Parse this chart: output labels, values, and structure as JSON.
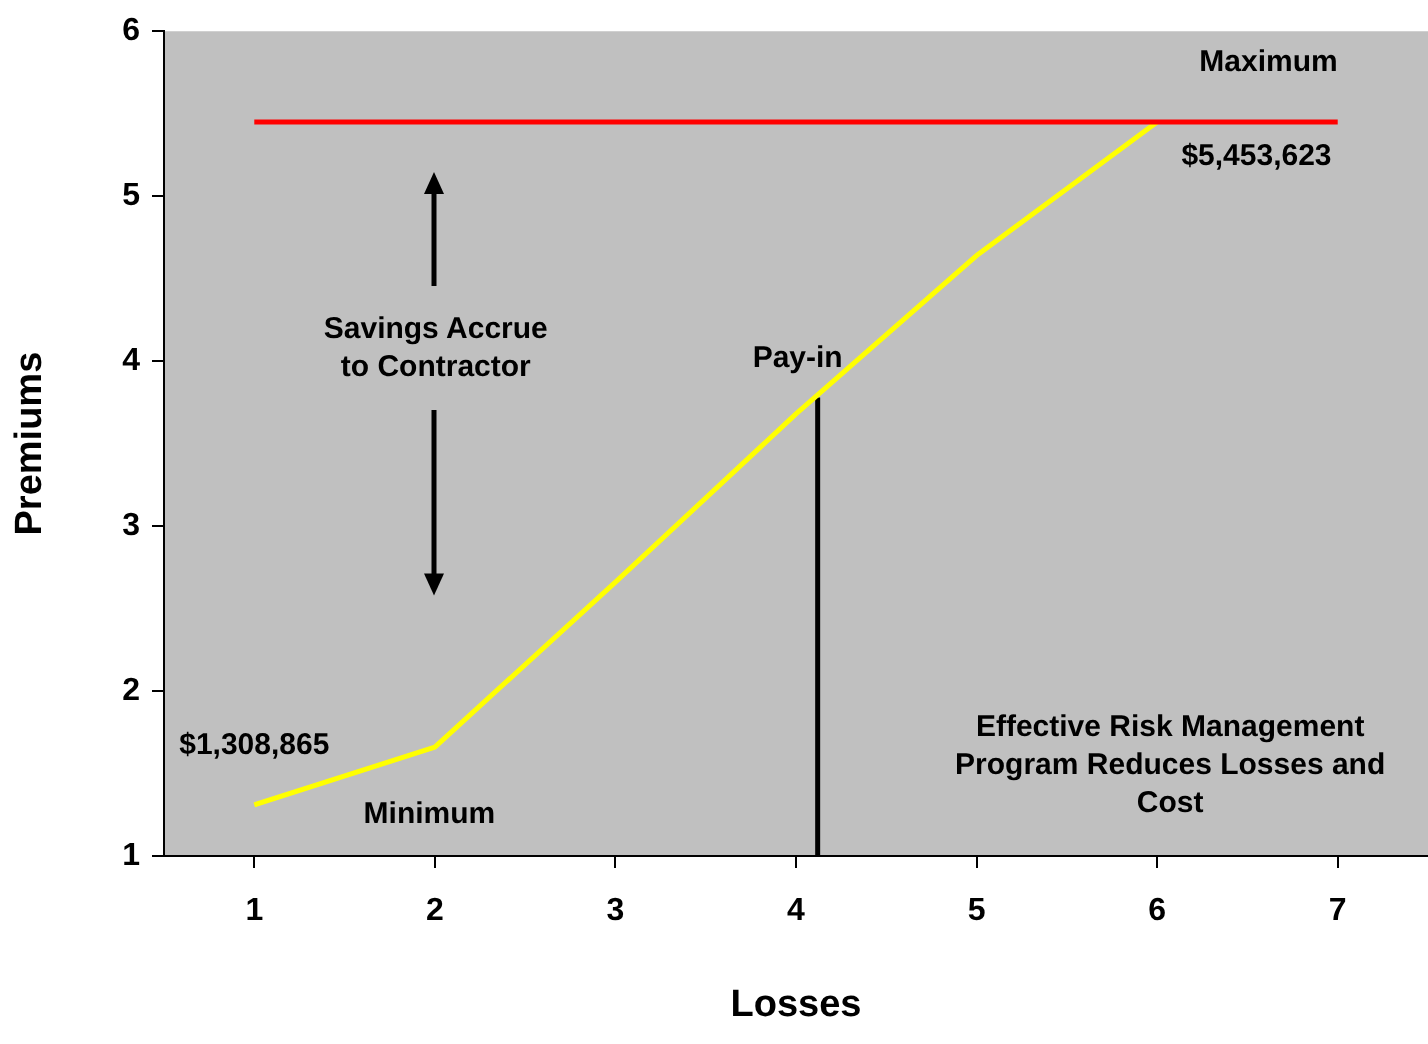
{
  "chart_data": {
    "type": "line",
    "xlabel": "Losses",
    "ylabel": "Premiums",
    "xlim": [
      0.5,
      7.5
    ],
    "xticks": [
      1,
      2,
      3,
      4,
      5,
      6,
      7
    ],
    "ylim": [
      1,
      6
    ],
    "yticks": [
      1,
      2,
      3,
      4,
      5,
      6
    ],
    "grid": false,
    "legend": false,
    "marker": "none",
    "series": [
      {
        "name": "Maximum",
        "color": "#ff0000",
        "x": [
          1,
          7
        ],
        "values": [
          5.45,
          5.45
        ]
      },
      {
        "color": "#ffff00",
        "x": [
          1,
          2,
          3,
          4,
          5,
          6
        ],
        "values": [
          1.31,
          1.66,
          2.66,
          3.68,
          4.64,
          5.45
        ]
      },
      {
        "color": "#000000",
        "x": [
          4.12,
          4.12
        ],
        "values": [
          1,
          3.78
        ]
      }
    ],
    "annotations": [
      {
        "text": "$5,453,623",
        "x": 6.55,
        "y": 5.45
      },
      {
        "text": "$1,308,865",
        "x": 1,
        "y": 1.31
      },
      {
        "text": "Pay-in",
        "x": 4.12,
        "y": 3.78
      },
      "Savings Accrue to Contractor",
      "Effective Risk Management Program Reduces Losses and Cost",
      "Minimum"
    ]
  }
}
